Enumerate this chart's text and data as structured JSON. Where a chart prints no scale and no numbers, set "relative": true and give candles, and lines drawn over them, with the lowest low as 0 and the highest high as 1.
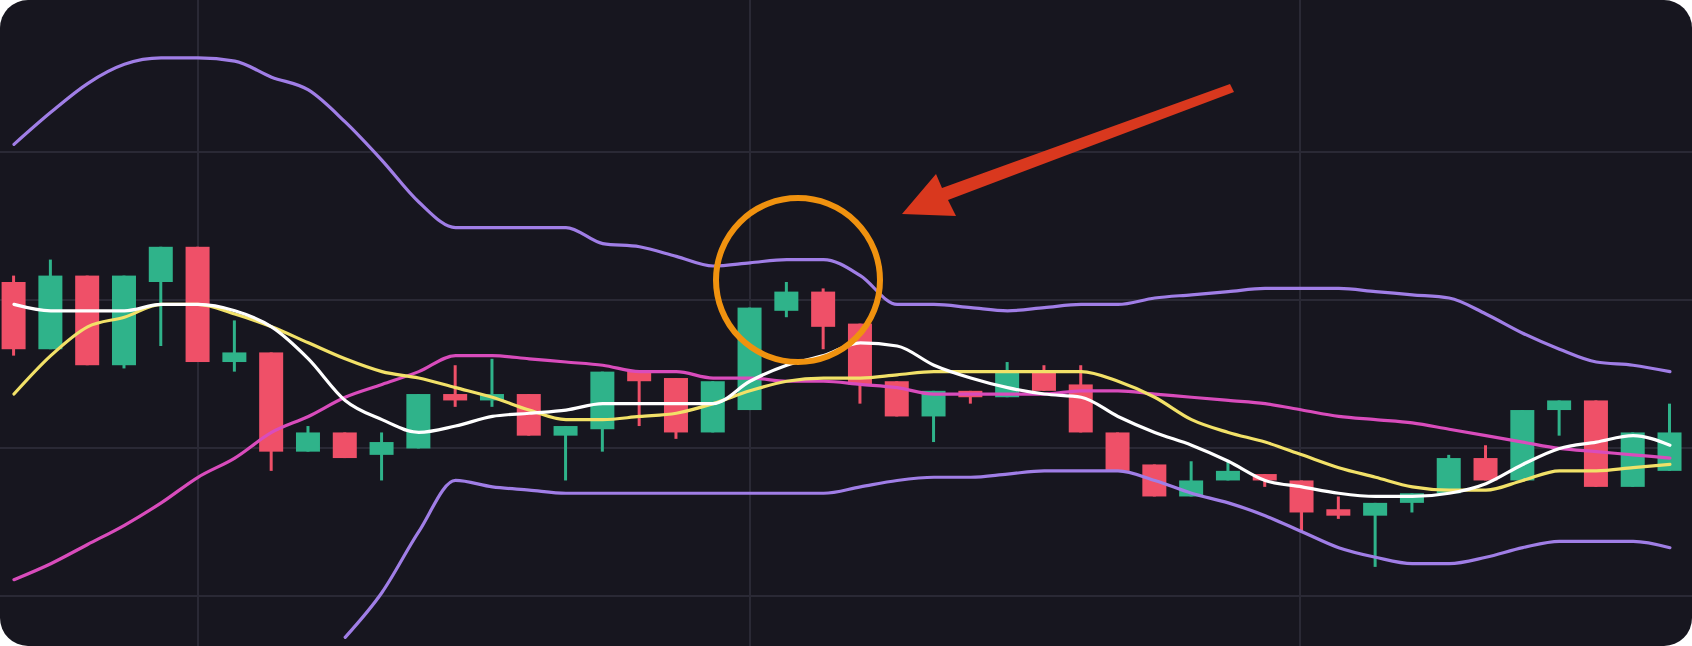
{
  "chart_data": {
    "type": "candlestick",
    "relative": true,
    "grid": true,
    "categories": [
      null,
      null,
      null,
      null,
      null,
      null,
      null,
      null,
      null,
      null,
      null,
      null,
      null,
      null,
      null,
      null,
      null,
      null,
      null,
      null,
      null,
      null,
      null,
      null,
      null,
      null,
      null,
      null,
      null,
      null,
      null,
      null,
      null,
      null,
      null,
      null,
      null,
      null,
      null,
      null,
      null,
      null,
      null,
      null,
      null,
      null
    ],
    "ohlc": [
      [
        0.89,
        0.91,
        0.66,
        0.68
      ],
      [
        0.68,
        0.96,
        0.68,
        0.91
      ],
      [
        0.91,
        0.91,
        0.63,
        0.63
      ],
      [
        0.63,
        0.91,
        0.62,
        0.91
      ],
      [
        0.89,
        1.0,
        0.69,
        1.0
      ],
      [
        1.0,
        1.0,
        0.64,
        0.64
      ],
      [
        0.64,
        0.77,
        0.61,
        0.67
      ],
      [
        0.67,
        0.67,
        0.3,
        0.36
      ],
      [
        0.36,
        0.44,
        0.36,
        0.42
      ],
      [
        0.42,
        0.42,
        0.34,
        0.34
      ],
      [
        0.35,
        0.42,
        0.27,
        0.39
      ],
      [
        0.37,
        0.54,
        0.37,
        0.54
      ],
      [
        0.54,
        0.63,
        0.5,
        0.52
      ],
      [
        0.52,
        0.65,
        0.5,
        0.54
      ],
      [
        0.54,
        0.54,
        0.41,
        0.41
      ],
      [
        0.41,
        0.44,
        0.27,
        0.44
      ],
      [
        0.43,
        0.61,
        0.36,
        0.61
      ],
      [
        0.61,
        0.61,
        0.44,
        0.58
      ],
      [
        0.59,
        0.59,
        0.4,
        0.42
      ],
      [
        0.42,
        0.58,
        0.42,
        0.58
      ],
      [
        0.49,
        0.81,
        0.49,
        0.81
      ],
      [
        0.8,
        0.89,
        0.78,
        0.86
      ],
      [
        0.86,
        0.87,
        0.68,
        0.75
      ],
      [
        0.76,
        0.76,
        0.51,
        0.57
      ],
      [
        0.58,
        0.58,
        0.47,
        0.47
      ],
      [
        0.47,
        0.55,
        0.39,
        0.55
      ],
      [
        0.55,
        0.55,
        0.51,
        0.53
      ],
      [
        0.53,
        0.64,
        0.53,
        0.61
      ],
      [
        0.61,
        0.63,
        0.55,
        0.55
      ],
      [
        0.57,
        0.63,
        0.42,
        0.42
      ],
      [
        0.42,
        0.42,
        0.3,
        0.3
      ],
      [
        0.32,
        0.32,
        0.22,
        0.22
      ],
      [
        0.22,
        0.33,
        0.22,
        0.27
      ],
      [
        0.27,
        0.33,
        0.27,
        0.3
      ],
      [
        0.29,
        0.29,
        0.25,
        0.27
      ],
      [
        0.27,
        0.27,
        0.11,
        0.17
      ],
      [
        0.18,
        0.22,
        0.15,
        0.16
      ],
      [
        0.16,
        0.2,
        0,
        0.2
      ],
      [
        0.2,
        0.23,
        0.17,
        0.23
      ],
      [
        0.23,
        0.35,
        0.23,
        0.34
      ],
      [
        0.34,
        0.38,
        0.27,
        0.27
      ],
      [
        0.27,
        0.49,
        0.27,
        0.49
      ],
      [
        0.49,
        0.52,
        0.41,
        0.52
      ],
      [
        0.52,
        0.52,
        0.25,
        0.25
      ],
      [
        0.25,
        0.42,
        0.25,
        0.42
      ],
      [
        0.3,
        0.51,
        0.3,
        0.42
      ]
    ],
    "colors": [
      "#ef5068",
      "#2fb38a",
      "#ef5068",
      "#2fb38a",
      "#2fb38a",
      "#ef5068",
      "#2fb38a",
      "#ef5068",
      "#2fb38a",
      "#ef5068",
      "#2fb38a",
      "#2fb38a",
      "#ef5068",
      "#2fb38a",
      "#ef5068",
      "#2fb38a",
      "#2fb38a",
      "#ef5068",
      "#ef5068",
      "#2fb38a",
      "#2fb38a",
      "#2fb38a",
      "#ef5068",
      "#ef5068",
      "#ef5068",
      "#2fb38a",
      "#ef5068",
      "#2fb38a",
      "#ef5068",
      "#ef5068",
      "#ef5068",
      "#ef5068",
      "#2fb38a",
      "#2fb38a",
      "#ef5068",
      "#ef5068",
      "#ef5068",
      "#2fb38a",
      "#2fb38a",
      "#2fb38a",
      "#ef5068",
      "#2fb38a",
      "#2fb38a",
      "#ef5068",
      "#2fb38a",
      "#2fb38a"
    ],
    "series": [
      {
        "type": "line",
        "color": "#a07ee6",
        "values": [
          1.32,
          1.42,
          1.51,
          1.57,
          1.59,
          1.59,
          1.58,
          1.53,
          1.49,
          1.39,
          1.27,
          1.14,
          1.06,
          1.06,
          1.06,
          1.06,
          1.01,
          1.0,
          0.97,
          0.94,
          0.95,
          0.96,
          0.96,
          0.91,
          0.82,
          0.82,
          0.81,
          0.8,
          0.81,
          0.82,
          0.82,
          0.84,
          0.85,
          0.86,
          0.87,
          0.87,
          0.87,
          0.86,
          0.85,
          0.84,
          0.79,
          0.73,
          0.68,
          0.64,
          0.63,
          0.61
        ]
      },
      {
        "type": "line",
        "color": "#a07ee6",
        "values": [
          null,
          null,
          null,
          null,
          null,
          null,
          null,
          null,
          null,
          -0.22,
          -0.08,
          0.11,
          0.27,
          0.25,
          0.24,
          0.23,
          0.23,
          0.23,
          0.23,
          0.23,
          0.23,
          0.23,
          0.23,
          0.25,
          0.27,
          0.28,
          0.28,
          0.29,
          0.3,
          0.3,
          0.3,
          0.27,
          0.23,
          0.2,
          0.16,
          0.11,
          0.06,
          0.03,
          0.01,
          0.01,
          0.03,
          0.06,
          0.08,
          0.08,
          0.08,
          0.06
        ]
      },
      {
        "type": "line",
        "color": "#d94cbc",
        "values": [
          -0.04,
          0.01,
          0.07,
          0.13,
          0.2,
          0.28,
          0.34,
          0.42,
          0.47,
          0.53,
          0.57,
          0.61,
          0.66,
          0.66,
          0.65,
          0.64,
          0.63,
          0.61,
          0.61,
          0.59,
          0.59,
          0.58,
          0.58,
          0.57,
          0.56,
          0.54,
          0.54,
          0.54,
          0.54,
          0.55,
          0.55,
          0.54,
          0.53,
          0.52,
          0.51,
          0.49,
          0.47,
          0.46,
          0.45,
          0.43,
          0.41,
          0.39,
          0.37,
          0.36,
          0.35,
          0.34
        ]
      },
      {
        "type": "line",
        "color": "#f2e168",
        "values": [
          0.54,
          0.66,
          0.75,
          0.78,
          0.82,
          0.82,
          0.79,
          0.75,
          0.7,
          0.65,
          0.61,
          0.59,
          0.56,
          0.53,
          0.49,
          0.46,
          0.46,
          0.47,
          0.48,
          0.51,
          0.55,
          0.58,
          0.59,
          0.59,
          0.6,
          0.61,
          0.61,
          0.61,
          0.61,
          0.61,
          0.58,
          0.53,
          0.46,
          0.42,
          0.39,
          0.35,
          0.31,
          0.28,
          0.25,
          0.24,
          0.24,
          0.27,
          0.3,
          0.3,
          0.31,
          0.32
        ]
      },
      {
        "type": "line",
        "color": "#ffffff",
        "values": [
          0.82,
          0.8,
          0.8,
          0.8,
          0.82,
          0.82,
          0.8,
          0.75,
          0.65,
          0.52,
          0.46,
          0.42,
          0.44,
          0.47,
          0.48,
          0.49,
          0.51,
          0.51,
          0.51,
          0.51,
          0.58,
          0.63,
          0.66,
          0.7,
          0.69,
          0.63,
          0.59,
          0.56,
          0.54,
          0.53,
          0.47,
          0.42,
          0.38,
          0.33,
          0.27,
          0.25,
          0.23,
          0.22,
          0.22,
          0.23,
          0.26,
          0.32,
          0.37,
          0.39,
          0.41,
          0.38
        ]
      }
    ]
  }
}
